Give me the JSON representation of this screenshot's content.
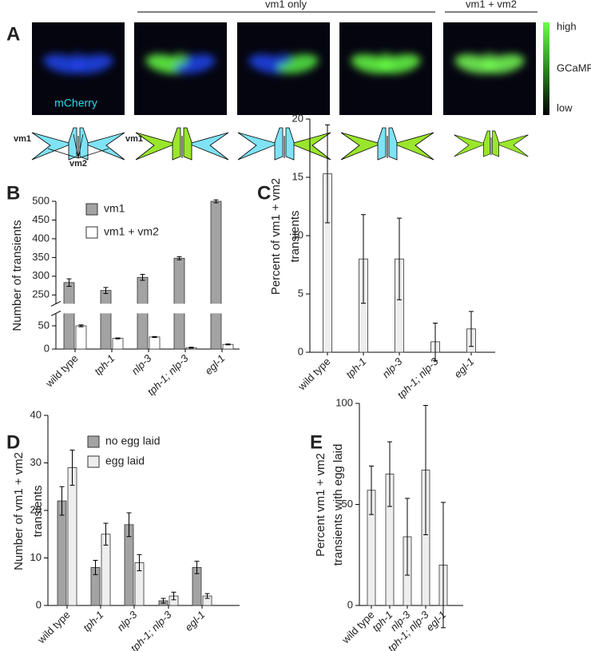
{
  "panel_a": {
    "label": "A",
    "groups": [
      "vm1 only",
      "vm1 + vm2"
    ],
    "image_label": "mCherry",
    "colorbar": [
      "high",
      "GCaMP",
      "low"
    ],
    "schematic_labels": [
      "vm1",
      "vm1",
      "vm2"
    ]
  },
  "chart_data": [
    {
      "type": "bar",
      "label": "B",
      "ylabel": [
        "Number of transients"
      ],
      "categories": [
        "wild type",
        "tph-1",
        "nlp-3",
        "tph-1; nlp-3",
        "egl-1"
      ],
      "series": [
        {
          "name": "vm1",
          "color": "#a3a3a3",
          "values": [
            283,
            262,
            297,
            348,
            500
          ],
          "errors": [
            10,
            8,
            8,
            4,
            4
          ]
        },
        {
          "name": "vm1 + vm2",
          "color": "#ffffff",
          "values": [
            50,
            23,
            26,
            3,
            10
          ],
          "errors": [
            2,
            1,
            1,
            1,
            1
          ]
        }
      ],
      "ylim": [
        0,
        500
      ],
      "axis_break": [
        70,
        235
      ],
      "yticks": [
        0,
        50,
        250,
        300,
        350,
        400,
        450,
        500
      ]
    },
    {
      "type": "bar",
      "label": "C",
      "ylabel": [
        "Percent of vm1 + vm2",
        "transients"
      ],
      "categories": [
        "wild type",
        "tph-1",
        "nlp-3",
        "tph-1; nlp-3",
        "egl-1"
      ],
      "series": [
        {
          "color": "#eeeeee",
          "values": [
            15.3,
            8,
            8,
            0.9,
            2
          ],
          "errors": [
            4.2,
            3.8,
            3.5,
            1.6,
            1.5
          ]
        }
      ],
      "ylim": [
        0,
        20
      ],
      "yticks": [
        0,
        5,
        10,
        15,
        20
      ]
    },
    {
      "type": "bar",
      "label": "D",
      "ylabel": [
        "Number of vm1 + vm2",
        "transients"
      ],
      "categories": [
        "wild type",
        "tph-1",
        "nlp-3",
        "tph-1; nlp-3",
        "egl-1"
      ],
      "series": [
        {
          "name": "no egg laid",
          "color": "#a3a3a3",
          "values": [
            22,
            8,
            17,
            1,
            8
          ],
          "errors": [
            3,
            1.5,
            2.5,
            0.5,
            1.3
          ]
        },
        {
          "name": "egg laid",
          "color": "#eeeeee",
          "values": [
            29,
            15,
            9,
            2,
            2
          ],
          "errors": [
            3.7,
            2.3,
            1.7,
            0.8,
            0.5
          ]
        }
      ],
      "ylim": [
        0,
        40
      ],
      "yticks": [
        0,
        10,
        20,
        30,
        40
      ]
    },
    {
      "type": "bar",
      "label": "E",
      "ylabel": [
        "Percent vm1 + vm2",
        "transients with egg laid"
      ],
      "categories": [
        "wild type",
        "tph-1",
        "nlp-3",
        "tph-1; nlp-3",
        "egl-1"
      ],
      "series": [
        {
          "color": "#eeeeee",
          "values": [
            57,
            65,
            34,
            67,
            20
          ],
          "errors": [
            12,
            16,
            19,
            32,
            31
          ]
        }
      ],
      "ylim": [
        0,
        100
      ],
      "yticks": [
        0,
        50,
        100
      ]
    }
  ]
}
